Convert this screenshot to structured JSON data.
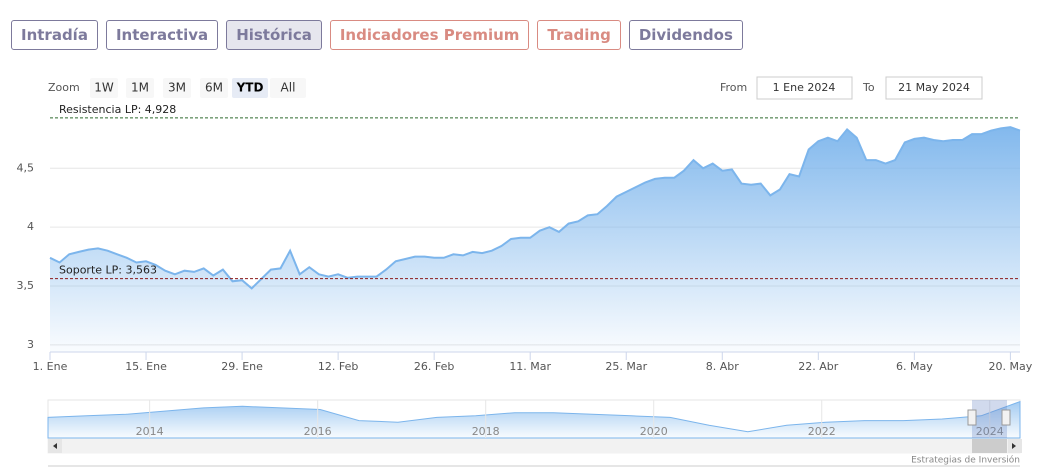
{
  "tabs": [
    {
      "label": "Intradía",
      "color": "#7d7a9c"
    },
    {
      "label": "Interactiva",
      "color": "#7d7a9c"
    },
    {
      "label": "Histórica",
      "color": "#7d7a9c"
    },
    {
      "label": "Indicadores Premium",
      "color": "#d98b82"
    },
    {
      "label": "Trading",
      "color": "#d98b82"
    },
    {
      "label": "Dividendos",
      "color": "#7d7a9c"
    }
  ],
  "active_tab": 2,
  "zoom": {
    "label": "Zoom",
    "buttons": [
      "1W",
      "1M",
      "3M",
      "6M",
      "YTD",
      "All"
    ],
    "selected": 4
  },
  "range": {
    "from_label": "From",
    "from": "1 Ene 2024",
    "to_label": "To",
    "to": "21 May 2024"
  },
  "credit": "Estrategias de Inversión",
  "chart_data": {
    "type": "area",
    "color": "#7cb5ec",
    "categories": [
      "1. Ene",
      null,
      null,
      null,
      null,
      null,
      null,
      null,
      null,
      null,
      "15. Ene",
      null,
      null,
      null,
      null,
      null,
      null,
      null,
      null,
      null,
      "29. Ene",
      null,
      null,
      null,
      null,
      null,
      null,
      null,
      null,
      null,
      "12. Feb",
      null,
      null,
      null,
      null,
      null,
      null,
      null,
      null,
      null,
      "26. Feb",
      null,
      null,
      null,
      null,
      null,
      null,
      null,
      null,
      null,
      "11. Mar",
      null,
      null,
      null,
      null,
      null,
      null,
      null,
      null,
      null,
      "25. Mar",
      null,
      null,
      null,
      null,
      null,
      null,
      null,
      null,
      null,
      "8. Abr",
      null,
      null,
      null,
      null,
      null,
      null,
      null,
      null,
      null,
      "22. Abr",
      null,
      null,
      null,
      null,
      null,
      null,
      null,
      null,
      null,
      "6. May",
      null,
      null,
      null,
      null,
      null,
      null,
      null,
      null,
      null,
      "20. May",
      null
    ],
    "values": [
      3.74,
      3.7,
      3.77,
      3.79,
      3.81,
      3.82,
      3.8,
      3.77,
      3.74,
      3.7,
      3.71,
      3.68,
      3.63,
      3.6,
      3.63,
      3.62,
      3.65,
      3.59,
      3.64,
      3.54,
      3.55,
      3.48,
      3.56,
      3.64,
      3.65,
      3.8,
      3.6,
      3.66,
      3.6,
      3.58,
      3.6,
      3.57,
      3.58,
      3.58,
      3.58,
      3.64,
      3.71,
      3.73,
      3.75,
      3.75,
      3.74,
      3.74,
      3.77,
      3.76,
      3.79,
      3.78,
      3.8,
      3.84,
      3.9,
      3.91,
      3.91,
      3.97,
      4.0,
      3.96,
      4.03,
      4.05,
      4.1,
      4.11,
      4.18,
      4.26,
      4.3,
      4.34,
      4.38,
      4.41,
      4.42,
      4.42,
      4.48,
      4.57,
      4.5,
      4.54,
      4.48,
      4.49,
      4.37,
      4.36,
      4.37,
      4.27,
      4.32,
      4.45,
      4.43,
      4.66,
      4.73,
      4.76,
      4.73,
      4.83,
      4.76,
      4.57,
      4.57,
      4.54,
      4.57,
      4.72,
      4.75,
      4.76,
      4.74,
      4.73,
      4.74,
      4.74,
      4.79,
      4.79,
      4.82,
      4.84,
      4.85,
      4.82
    ],
    "ylim": [
      2.94,
      5.08
    ],
    "yticks": [
      3,
      {
        "value": 3.5,
        "label": "3,5"
      },
      4,
      {
        "value": 4.5,
        "label": "4,5"
      }
    ],
    "grid": true,
    "plot_lines": [
      {
        "value": 4.928,
        "label": "Resistencia LP: 4,928",
        "color": "#2e6b2e"
      },
      {
        "value": 3.563,
        "label": "Soporte LP: 3,563",
        "color": "#8b1a1a"
      }
    ],
    "navigator": {
      "values": [
        3.5,
        3.6,
        3.7,
        3.9,
        4.1,
        4.2,
        4.1,
        4.0,
        3.3,
        3.2,
        3.5,
        3.6,
        3.8,
        3.8,
        3.7,
        3.6,
        3.5,
        3.0,
        2.6,
        3.0,
        3.2,
        3.3,
        3.3,
        3.4,
        3.6,
        4.5
      ],
      "ylim": [
        2.2,
        4.6
      ],
      "xlim": [
        2012.79,
        2024.36
      ],
      "xticks": [
        2014,
        2016,
        2018,
        2020,
        2022,
        2024
      ]
    }
  }
}
